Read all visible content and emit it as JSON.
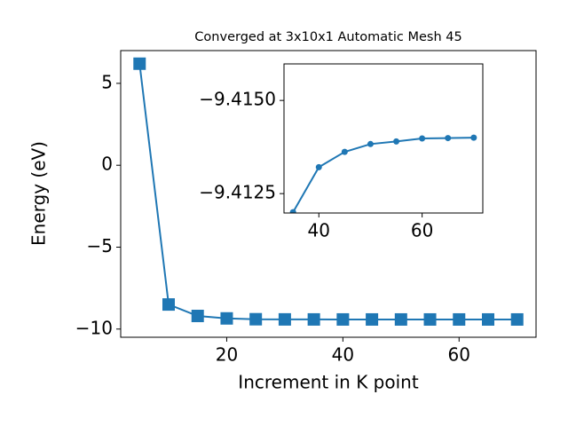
{
  "chart_data": [
    {
      "type": "line",
      "title": "Converged at 3x10x1 Automatic Mesh 45",
      "x_label": "Increment in K point",
      "y_label": "Energy (eV)",
      "x": [
        5,
        10,
        15,
        20,
        25,
        30,
        35,
        40,
        45,
        50,
        55,
        60,
        65,
        70
      ],
      "series": [
        {
          "color": "#1f77b4",
          "marker": "square",
          "values": [
            6.2,
            -8.5,
            -9.2,
            -9.35,
            -9.4,
            -9.41,
            -9.412,
            -9.4132,
            -9.4136,
            -9.4138,
            -9.4139,
            -9.414,
            -9.414,
            -9.414
          ]
        }
      ],
      "xlim": [
        1.75,
        73.25
      ],
      "ylim": [
        -10.5,
        7.0
      ],
      "xticks": [
        20,
        40,
        60
      ],
      "yticks": [
        {
          "value": -10,
          "label": "−10"
        },
        {
          "value": -5,
          "label": "−5"
        },
        0,
        5
      ]
    },
    {
      "type": "line",
      "x": [
        35,
        40,
        45,
        50,
        55,
        60,
        65,
        70
      ],
      "series": [
        {
          "color": "#1f77b4",
          "marker": "circle",
          "values": [
            -9.412,
            -9.41321,
            -9.41362,
            -9.41383,
            -9.4139,
            -9.41398,
            -9.41399,
            -9.414
          ]
        }
      ],
      "xlim": [
        33.25,
        71.75
      ],
      "ylim": [
        -9.41198,
        -9.41598
      ],
      "xticks": [
        40,
        60
      ],
      "yticks": [
        {
          "value": -9.4125,
          "label": "−9.4125"
        },
        {
          "value": -9.415,
          "label": "−9.4150"
        }
      ]
    }
  ]
}
